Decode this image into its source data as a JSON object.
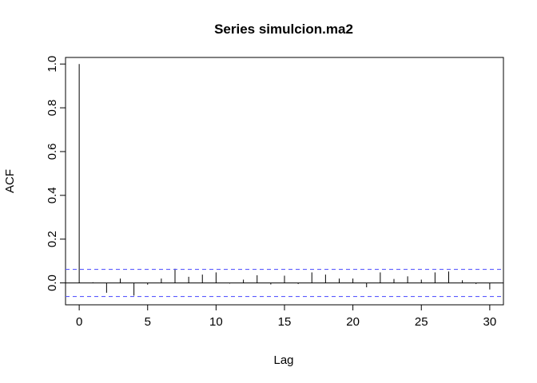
{
  "chart_data": {
    "type": "bar",
    "title": "Series  simulcion.ma2",
    "xlabel": "Lag",
    "ylabel": "ACF",
    "xlim": [
      -1,
      31
    ],
    "ylim": [
      -0.1,
      1.03
    ],
    "x_ticks": [
      0,
      5,
      10,
      15,
      20,
      25,
      30
    ],
    "y_ticks": [
      0.0,
      0.2,
      0.4,
      0.6,
      0.8,
      1.0
    ],
    "lags": [
      0,
      1,
      2,
      3,
      4,
      5,
      6,
      7,
      8,
      9,
      10,
      11,
      12,
      13,
      14,
      15,
      16,
      17,
      18,
      19,
      20,
      21,
      22,
      23,
      24,
      25,
      26,
      27,
      28,
      29,
      30
    ],
    "values": [
      1.0,
      0.003,
      -0.045,
      0.02,
      -0.058,
      -0.008,
      0.02,
      0.065,
      0.028,
      0.038,
      0.048,
      -0.003,
      0.015,
      0.035,
      -0.007,
      0.033,
      -0.005,
      0.048,
      0.038,
      0.02,
      0.02,
      -0.02,
      0.048,
      0.018,
      0.03,
      0.015,
      0.048,
      0.052,
      0.012,
      -0.005,
      -0.03
    ],
    "confidence_limit": 0.062,
    "confidence_color": "#5b5bff",
    "grid": false
  }
}
